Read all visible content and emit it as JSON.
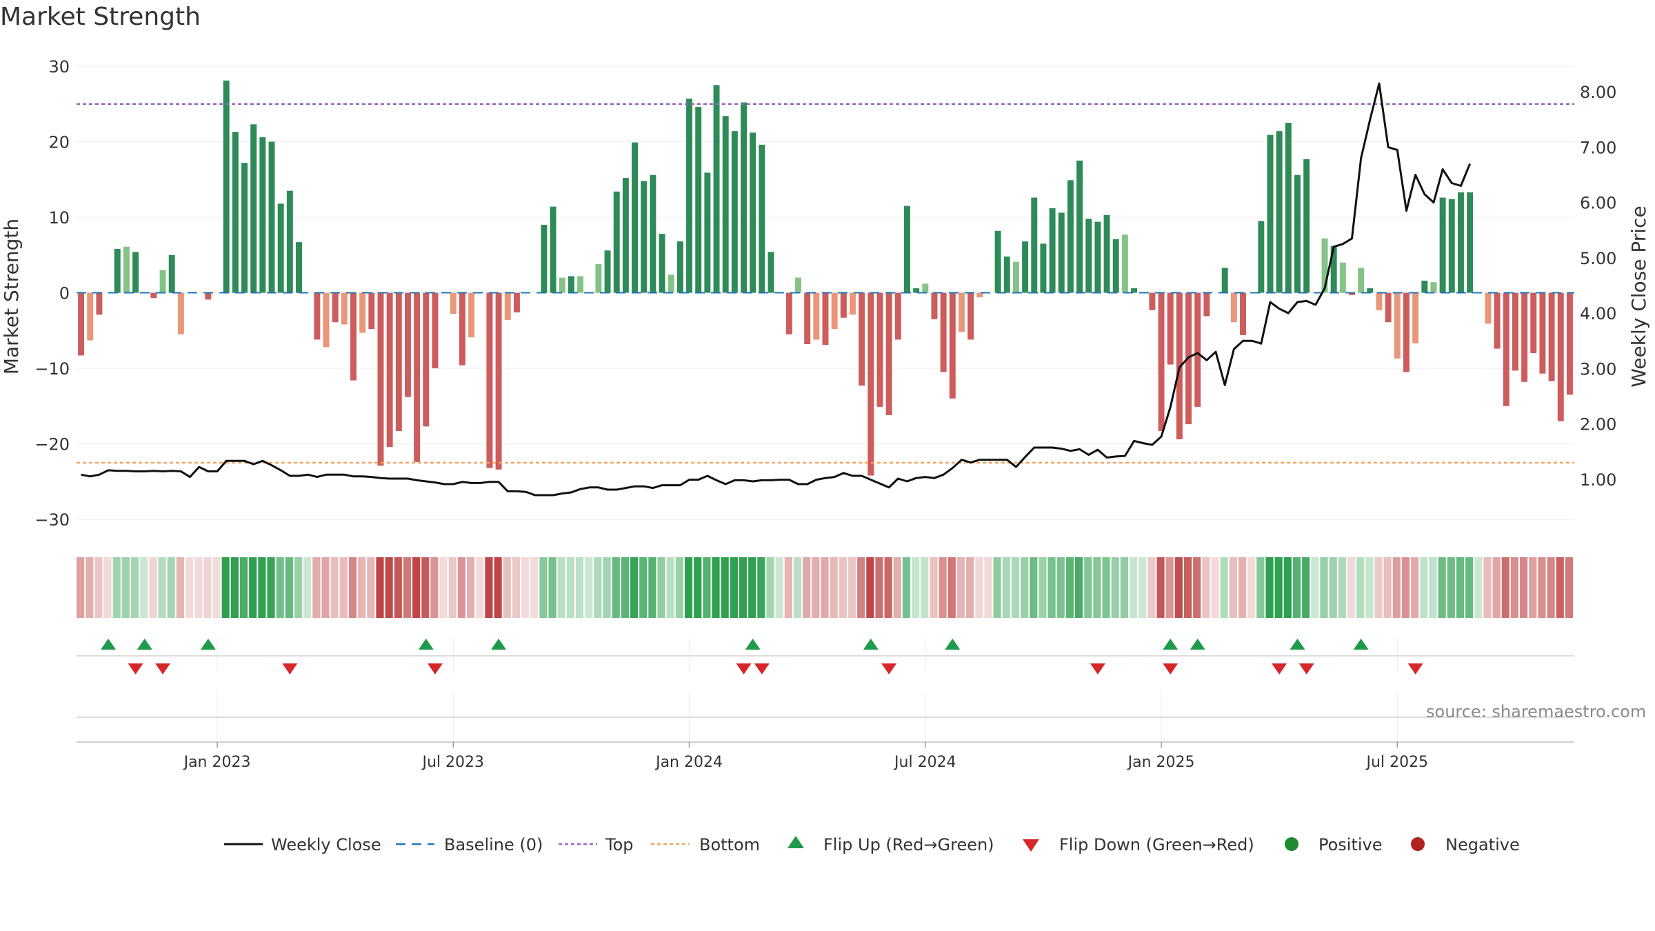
{
  "title": "Market Strength",
  "source": "source: sharemaestro.com",
  "chart_data": {
    "type": "bar",
    "ylabel_left": "Market Strength",
    "ylabel_right": "Weekly Close Price",
    "ylim_left": [
      -32,
      31
    ],
    "ylim_right": [
      0.0,
      8.6
    ],
    "yticks_left": [
      30,
      20,
      10,
      0,
      -10,
      -20,
      -30
    ],
    "yticks_left_labels": [
      "30",
      "20",
      "10",
      "0",
      "−10",
      "−20",
      "−30"
    ],
    "yticks_right": [
      8,
      7,
      6,
      5,
      4,
      3,
      2,
      1
    ],
    "yticks_right_labels": [
      "8.00",
      "7.00",
      "6.00",
      "5.00",
      "4.00",
      "3.00",
      "2.00",
      "1.00"
    ],
    "xticks": [
      "Jan 2023",
      "Jul 2023",
      "Jan 2024",
      "Jul 2024",
      "Jan 2025",
      "Jul 2025"
    ],
    "xtick_weeks": [
      15,
      41,
      67,
      93,
      119,
      145
    ],
    "top_line": 25,
    "bottom_line": -22.5,
    "colors": {
      "pos_strong": "#2e8b57",
      "pos_weak": "#85c285",
      "neg_strong": "#cd5c5c",
      "neg_weak": "#e9967a",
      "close": "#111111",
      "baseline": "#1f77b4",
      "top": "#9467bd",
      "bottom": "#f4a460",
      "flip_up": "#1f9a4a",
      "flip_down": "#d62728",
      "positive": "#1f8a2e",
      "negative": "#b22222"
    },
    "strength": [
      -8.3,
      -6.3,
      -2.9,
      0,
      5.8,
      6.1,
      5.4,
      0,
      -0.7,
      3.0,
      5.0,
      -5.5,
      0,
      0,
      -0.9,
      0,
      28.1,
      21.3,
      17.2,
      22.3,
      20.6,
      20.0,
      11.8,
      13.5,
      6.7,
      0,
      -6.2,
      -7.2,
      -3.9,
      -4.2,
      -11.6,
      -5.3,
      -4.8,
      -22.9,
      -20.4,
      -18.3,
      -13.8,
      -22.4,
      -17.7,
      -10.0,
      0,
      -2.8,
      -9.6,
      -5.9,
      0,
      -23.2,
      -23.4,
      -3.6,
      -2.6,
      0,
      0,
      9.0,
      11.4,
      2.0,
      2.2,
      2.2,
      0,
      3.8,
      5.6,
      13.4,
      15.2,
      19.9,
      14.8,
      15.6,
      7.8,
      2.4,
      6.8,
      25.7,
      24.6,
      15.9,
      27.5,
      23.4,
      21.4,
      25.2,
      21.2,
      19.6,
      5.4,
      0,
      -5.5,
      2.0,
      -6.8,
      -6.2,
      -6.9,
      -4.8,
      -3.3,
      -2.9,
      -12.3,
      -24.2,
      -15.1,
      -16.2,
      -6.2,
      11.5,
      0.6,
      1.2,
      -3.5,
      -10.5,
      -14.0,
      -5.2,
      -6.2,
      -0.6,
      0,
      8.2,
      4.8,
      4.1,
      6.8,
      12.6,
      6.5,
      11.2,
      10.6,
      14.9,
      17.5,
      9.8,
      9.4,
      10.3,
      7.1,
      7.7,
      0.6,
      0,
      -2.3,
      -18.3,
      -9.5,
      -19.4,
      -17.4,
      -15.1,
      -3.1,
      0,
      3.3,
      -3.9,
      -5.6,
      0,
      9.5,
      20.9,
      21.4,
      22.5,
      15.6,
      17.7,
      0,
      7.2,
      6.2,
      4.0,
      -0.3,
      3.3,
      0.6,
      -2.3,
      -3.9,
      -8.7,
      -10.5,
      -6.7,
      1.6,
      1.4,
      12.6,
      12.4,
      13.3,
      13.3,
      0,
      -4.1,
      -7.4,
      -15.0,
      -10.3,
      -11.8,
      -8.0,
      -10.7,
      -11.7,
      -17.0,
      -13.5
    ],
    "close": [
      1.08,
      1.05,
      1.08,
      1.16,
      1.15,
      1.15,
      1.14,
      1.14,
      1.15,
      1.14,
      1.15,
      1.14,
      1.04,
      1.22,
      1.14,
      1.14,
      1.33,
      1.33,
      1.33,
      1.27,
      1.33,
      1.25,
      1.16,
      1.06,
      1.06,
      1.08,
      1.04,
      1.08,
      1.08,
      1.08,
      1.05,
      1.05,
      1.04,
      1.02,
      1.01,
      1.01,
      1.01,
      0.98,
      0.96,
      0.94,
      0.91,
      0.91,
      0.95,
      0.93,
      0.93,
      0.95,
      0.95,
      0.78,
      0.78,
      0.77,
      0.71,
      0.71,
      0.71,
      0.74,
      0.76,
      0.82,
      0.85,
      0.85,
      0.81,
      0.81,
      0.84,
      0.87,
      0.87,
      0.84,
      0.89,
      0.89,
      0.89,
      0.99,
      0.99,
      1.06,
      0.98,
      0.91,
      0.98,
      0.98,
      0.96,
      0.98,
      0.98,
      0.99,
      0.99,
      0.91,
      0.91,
      0.99,
      1.02,
      1.04,
      1.11,
      1.06,
      1.06,
      0.99,
      0.92,
      0.85,
      1.01,
      0.96,
      1.02,
      1.04,
      1.02,
      1.08,
      1.2,
      1.35,
      1.3,
      1.35,
      1.35,
      1.35,
      1.35,
      1.22,
      1.4,
      1.57,
      1.57,
      1.57,
      1.55,
      1.51,
      1.54,
      1.44,
      1.53,
      1.39,
      1.41,
      1.42,
      1.69,
      1.65,
      1.62,
      1.77,
      2.3,
      3.02,
      3.2,
      3.28,
      3.15,
      3.3,
      2.7,
      3.35,
      3.5,
      3.5,
      3.45,
      4.2,
      4.08,
      4.0,
      4.2,
      4.22,
      4.15,
      4.45,
      5.2,
      5.25,
      5.35,
      6.8,
      7.5,
      8.15,
      7.0,
      6.95,
      5.85,
      6.5,
      6.15,
      6.0,
      6.6,
      6.35,
      6.3,
      6.7
    ],
    "flip_up": [
      3,
      7,
      14,
      38,
      46,
      74,
      87,
      96,
      120,
      123,
      134,
      141
    ],
    "flip_down": [
      6,
      9,
      23,
      39,
      73,
      75,
      89,
      112,
      120,
      132,
      135,
      147
    ],
    "legend": [
      "Weekly Close",
      "Baseline (0)",
      "Top",
      "Bottom",
      "Flip Up (Red→Green)",
      "Flip Down (Green→Red)",
      "Positive",
      "Negative"
    ]
  }
}
